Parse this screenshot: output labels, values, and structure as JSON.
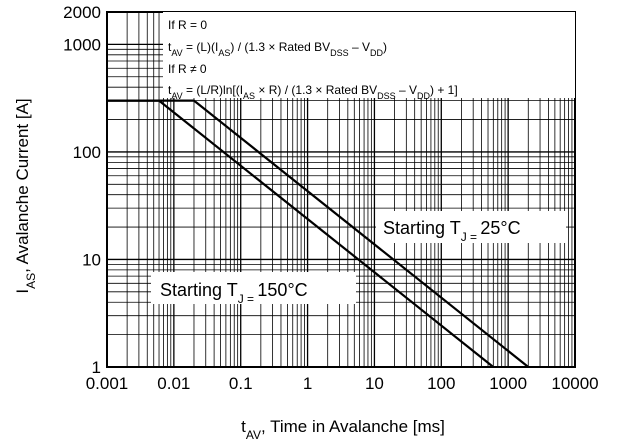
{
  "chart_data": {
    "type": "line",
    "title": "",
    "x_scale": "log",
    "y_scale": "log",
    "xlim": [
      0.001,
      10000
    ],
    "ylim": [
      1,
      2000
    ],
    "grid": true,
    "x_ticks": [
      "0.001",
      "0.01",
      "0.1",
      "1",
      "10",
      "100",
      "1000",
      "10000"
    ],
    "y_ticks": [
      "1",
      "10",
      "100",
      "1000",
      "2000"
    ],
    "xlabel": {
      "main": "t",
      "sub": "AV",
      "rest": ", Time in Avalanche [ms]"
    },
    "ylabel": {
      "main": "I",
      "sub": "AS",
      "rest": ", Avalanche Current [A]"
    },
    "annotation": {
      "line1": "If R = 0",
      "line2": {
        "a": "t",
        "a_sub": "AV",
        "b": " = (L)(I",
        "b_sub": "AS",
        "c": ") / (1.3 × Rated BV",
        "c_sub": "DSS",
        "d": " – V",
        "d_sub": "DD",
        "e": ")"
      },
      "line3": "If R ≠ 0",
      "line4": {
        "a": "t",
        "a_sub": "AV",
        "b": " = (L/R)ln[(I",
        "b_sub": "AS",
        "c": " × R) / (1.3 × Rated BV",
        "c_sub": "DSS",
        "d": " – V",
        "d_sub": "DD",
        "e": ") + 1]"
      }
    },
    "series": [
      {
        "name": {
          "main": "Starting T",
          "sub": "J = ",
          "rest": "25°C"
        },
        "x": [
          0.001,
          0.02,
          2000
        ],
        "y": [
          300,
          300,
          1
        ]
      },
      {
        "name": {
          "main": "Starting T",
          "sub": "J = ",
          "rest": "150°C"
        },
        "x": [
          0.001,
          0.006,
          600
        ],
        "y": [
          300,
          300,
          1
        ]
      }
    ]
  }
}
